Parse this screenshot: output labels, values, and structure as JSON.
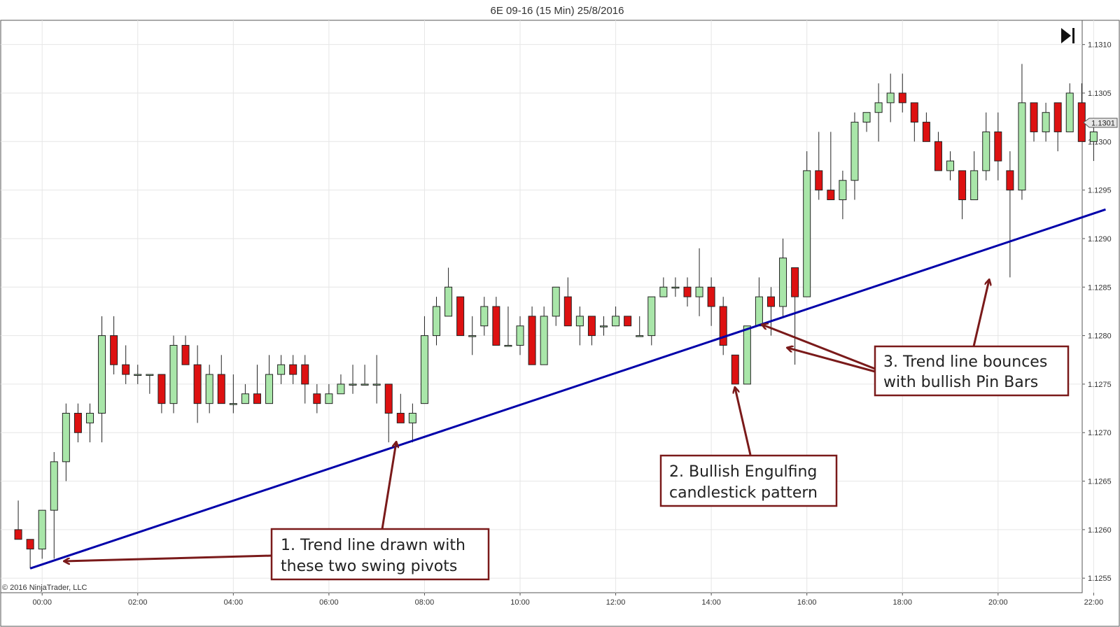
{
  "chart_data": {
    "type": "candlestick",
    "title": "6E 09-16 (15 Min)  25/8/2016",
    "copyright": "© 2016 NinjaTrader, LLC",
    "y_ticks": [
      "1.1310",
      "1.1305",
      "1.1300",
      "1.1295",
      "1.1290",
      "1.1285",
      "1.1280",
      "1.1275",
      "1.1270",
      "1.1265",
      "1.1260",
      "1.1255"
    ],
    "x_ticks": [
      "00:00",
      "02:00",
      "04:00",
      "06:00",
      "08:00",
      "10:00",
      "12:00",
      "14:00",
      "16:00",
      "18:00",
      "20:00",
      "22:00"
    ],
    "x_start": "23:15",
    "interval_minutes": 15,
    "ylim": [
      1.12535,
      1.13125
    ],
    "last_price": "1.1301",
    "colors": {
      "up": "#a9e6a9",
      "down": "#dd1111",
      "wick": "#222222",
      "trend": "#0000aa",
      "note": "#7a1a1a",
      "grid": "#e6e6e6"
    },
    "candles": [
      {
        "t": "23:30",
        "o": 1.126,
        "h": 1.1263,
        "l": 1.1259,
        "c": 1.1259
      },
      {
        "t": "23:45",
        "o": 1.1259,
        "h": 1.1259,
        "l": 1.1256,
        "c": 1.1258
      },
      {
        "t": "00:00",
        "o": 1.1258,
        "h": 1.1262,
        "l": 1.1257,
        "c": 1.1262
      },
      {
        "t": "00:15",
        "o": 1.1262,
        "h": 1.1268,
        "l": 1.1257,
        "c": 1.1267
      },
      {
        "t": "00:30",
        "o": 1.1267,
        "h": 1.1273,
        "l": 1.1265,
        "c": 1.1272
      },
      {
        "t": "00:45",
        "o": 1.1272,
        "h": 1.1273,
        "l": 1.1269,
        "c": 1.127
      },
      {
        "t": "01:00",
        "o": 1.1271,
        "h": 1.1273,
        "l": 1.1269,
        "c": 1.1272
      },
      {
        "t": "01:15",
        "o": 1.1272,
        "h": 1.1282,
        "l": 1.1269,
        "c": 1.128
      },
      {
        "t": "01:30",
        "o": 1.128,
        "h": 1.1282,
        "l": 1.1276,
        "c": 1.1277
      },
      {
        "t": "01:45",
        "o": 1.1277,
        "h": 1.1279,
        "l": 1.1275,
        "c": 1.1276
      },
      {
        "t": "02:00",
        "o": 1.1276,
        "h": 1.1277,
        "l": 1.1275,
        "c": 1.1276
      },
      {
        "t": "02:15",
        "o": 1.1276,
        "h": 1.1276,
        "l": 1.1274,
        "c": 1.1276
      },
      {
        "t": "02:30",
        "o": 1.1276,
        "h": 1.1276,
        "l": 1.1272,
        "c": 1.1273
      },
      {
        "t": "02:45",
        "o": 1.1273,
        "h": 1.128,
        "l": 1.1272,
        "c": 1.1279
      },
      {
        "t": "03:00",
        "o": 1.1279,
        "h": 1.128,
        "l": 1.1277,
        "c": 1.1277
      },
      {
        "t": "03:15",
        "o": 1.1277,
        "h": 1.1279,
        "l": 1.1271,
        "c": 1.1273
      },
      {
        "t": "03:30",
        "o": 1.1273,
        "h": 1.1277,
        "l": 1.1272,
        "c": 1.1276
      },
      {
        "t": "03:45",
        "o": 1.1276,
        "h": 1.1278,
        "l": 1.1273,
        "c": 1.1273
      },
      {
        "t": "04:00",
        "o": 1.1273,
        "h": 1.1276,
        "l": 1.1272,
        "c": 1.1273
      },
      {
        "t": "04:15",
        "o": 1.1273,
        "h": 1.1275,
        "l": 1.1273,
        "c": 1.1274
      },
      {
        "t": "04:30",
        "o": 1.1274,
        "h": 1.1277,
        "l": 1.1273,
        "c": 1.1273
      },
      {
        "t": "04:45",
        "o": 1.1273,
        "h": 1.1278,
        "l": 1.1273,
        "c": 1.1276
      },
      {
        "t": "05:00",
        "o": 1.1276,
        "h": 1.1278,
        "l": 1.1275,
        "c": 1.1277
      },
      {
        "t": "05:15",
        "o": 1.1277,
        "h": 1.1278,
        "l": 1.1275,
        "c": 1.1276
      },
      {
        "t": "05:30",
        "o": 1.1277,
        "h": 1.1278,
        "l": 1.1273,
        "c": 1.1275
      },
      {
        "t": "05:45",
        "o": 1.1274,
        "h": 1.1275,
        "l": 1.1272,
        "c": 1.1273
      },
      {
        "t": "06:00",
        "o": 1.1273,
        "h": 1.1275,
        "l": 1.1273,
        "c": 1.1274
      },
      {
        "t": "06:15",
        "o": 1.1274,
        "h": 1.1276,
        "l": 1.1274,
        "c": 1.1275
      },
      {
        "t": "06:30",
        "o": 1.1275,
        "h": 1.1277,
        "l": 1.1274,
        "c": 1.1275
      },
      {
        "t": "06:45",
        "o": 1.1275,
        "h": 1.1277,
        "l": 1.1275,
        "c": 1.1275
      },
      {
        "t": "07:00",
        "o": 1.1275,
        "h": 1.1278,
        "l": 1.1273,
        "c": 1.1275
      },
      {
        "t": "07:15",
        "o": 1.1275,
        "h": 1.1275,
        "l": 1.1269,
        "c": 1.1272
      },
      {
        "t": "07:30",
        "o": 1.1272,
        "h": 1.1274,
        "l": 1.1271,
        "c": 1.1271
      },
      {
        "t": "07:45",
        "o": 1.1271,
        "h": 1.1273,
        "l": 1.1269,
        "c": 1.1272
      },
      {
        "t": "08:00",
        "o": 1.1273,
        "h": 1.1282,
        "l": 1.1273,
        "c": 1.128
      },
      {
        "t": "08:15",
        "o": 1.128,
        "h": 1.1284,
        "l": 1.1279,
        "c": 1.1283
      },
      {
        "t": "08:30",
        "o": 1.1282,
        "h": 1.1287,
        "l": 1.1282,
        "c": 1.1285
      },
      {
        "t": "08:45",
        "o": 1.1284,
        "h": 1.1284,
        "l": 1.128,
        "c": 1.128
      },
      {
        "t": "09:00",
        "o": 1.128,
        "h": 1.1282,
        "l": 1.1278,
        "c": 1.128
      },
      {
        "t": "09:15",
        "o": 1.1281,
        "h": 1.1284,
        "l": 1.128,
        "c": 1.1283
      },
      {
        "t": "09:30",
        "o": 1.1283,
        "h": 1.1284,
        "l": 1.1279,
        "c": 1.1279
      },
      {
        "t": "09:45",
        "o": 1.1279,
        "h": 1.1283,
        "l": 1.1279,
        "c": 1.1279
      },
      {
        "t": "10:00",
        "o": 1.1279,
        "h": 1.1282,
        "l": 1.1278,
        "c": 1.1281
      },
      {
        "t": "10:15",
        "o": 1.1282,
        "h": 1.1283,
        "l": 1.1277,
        "c": 1.1277
      },
      {
        "t": "10:30",
        "o": 1.1277,
        "h": 1.1283,
        "l": 1.1277,
        "c": 1.1282
      },
      {
        "t": "10:45",
        "o": 1.1282,
        "h": 1.1285,
        "l": 1.1281,
        "c": 1.1285
      },
      {
        "t": "11:00",
        "o": 1.1284,
        "h": 1.1286,
        "l": 1.1281,
        "c": 1.1281
      },
      {
        "t": "11:15",
        "o": 1.1281,
        "h": 1.1283,
        "l": 1.1279,
        "c": 1.1282
      },
      {
        "t": "11:30",
        "o": 1.1282,
        "h": 1.1282,
        "l": 1.1279,
        "c": 1.128
      },
      {
        "t": "11:45",
        "o": 1.1281,
        "h": 1.1282,
        "l": 1.128,
        "c": 1.1281
      },
      {
        "t": "12:00",
        "o": 1.1281,
        "h": 1.1283,
        "l": 1.1281,
        "c": 1.1282
      },
      {
        "t": "12:15",
        "o": 1.1282,
        "h": 1.1282,
        "l": 1.1281,
        "c": 1.1281
      },
      {
        "t": "12:30",
        "o": 1.128,
        "h": 1.1282,
        "l": 1.128,
        "c": 1.128
      },
      {
        "t": "12:45",
        "o": 1.128,
        "h": 1.1284,
        "l": 1.1279,
        "c": 1.1284
      },
      {
        "t": "13:00",
        "o": 1.1284,
        "h": 1.1286,
        "l": 1.1284,
        "c": 1.1285
      },
      {
        "t": "13:15",
        "o": 1.1285,
        "h": 1.1286,
        "l": 1.1284,
        "c": 1.1285
      },
      {
        "t": "13:30",
        "o": 1.1285,
        "h": 1.1286,
        "l": 1.1283,
        "c": 1.1284
      },
      {
        "t": "13:45",
        "o": 1.1284,
        "h": 1.1289,
        "l": 1.1282,
        "c": 1.1285
      },
      {
        "t": "14:00",
        "o": 1.1285,
        "h": 1.1286,
        "l": 1.1281,
        "c": 1.1283
      },
      {
        "t": "14:15",
        "o": 1.1283,
        "h": 1.1284,
        "l": 1.1278,
        "c": 1.1279
      },
      {
        "t": "14:30",
        "o": 1.1278,
        "h": 1.1278,
        "l": 1.1275,
        "c": 1.1275
      },
      {
        "t": "14:45",
        "o": 1.1275,
        "h": 1.1281,
        "l": 1.1275,
        "c": 1.1281
      },
      {
        "t": "15:00",
        "o": 1.1281,
        "h": 1.1286,
        "l": 1.1281,
        "c": 1.1284
      },
      {
        "t": "15:15",
        "o": 1.1284,
        "h": 1.1285,
        "l": 1.128,
        "c": 1.1283
      },
      {
        "t": "15:30",
        "o": 1.1283,
        "h": 1.129,
        "l": 1.1282,
        "c": 1.1288
      },
      {
        "t": "15:45",
        "o": 1.1287,
        "h": 1.1287,
        "l": 1.1277,
        "c": 1.1284
      },
      {
        "t": "16:00",
        "o": 1.1284,
        "h": 1.1299,
        "l": 1.1284,
        "c": 1.1297
      },
      {
        "t": "16:15",
        "o": 1.1297,
        "h": 1.1301,
        "l": 1.1294,
        "c": 1.1295
      },
      {
        "t": "16:30",
        "o": 1.1295,
        "h": 1.1301,
        "l": 1.1294,
        "c": 1.1294
      },
      {
        "t": "16:45",
        "o": 1.1294,
        "h": 1.1297,
        "l": 1.1292,
        "c": 1.1296
      },
      {
        "t": "17:00",
        "o": 1.1296,
        "h": 1.1303,
        "l": 1.1294,
        "c": 1.1302
      },
      {
        "t": "17:15",
        "o": 1.1302,
        "h": 1.1303,
        "l": 1.1301,
        "c": 1.1303
      },
      {
        "t": "17:30",
        "o": 1.1303,
        "h": 1.1306,
        "l": 1.13,
        "c": 1.1304
      },
      {
        "t": "17:45",
        "o": 1.1304,
        "h": 1.1307,
        "l": 1.1302,
        "c": 1.1305
      },
      {
        "t": "18:00",
        "o": 1.1305,
        "h": 1.1307,
        "l": 1.1303,
        "c": 1.1304
      },
      {
        "t": "18:15",
        "o": 1.1304,
        "h": 1.1304,
        "l": 1.13,
        "c": 1.1302
      },
      {
        "t": "18:30",
        "o": 1.1302,
        "h": 1.1303,
        "l": 1.13,
        "c": 1.13
      },
      {
        "t": "18:45",
        "o": 1.13,
        "h": 1.1301,
        "l": 1.1297,
        "c": 1.1297
      },
      {
        "t": "19:00",
        "o": 1.1297,
        "h": 1.1299,
        "l": 1.1296,
        "c": 1.1298
      },
      {
        "t": "19:15",
        "o": 1.1297,
        "h": 1.1297,
        "l": 1.1292,
        "c": 1.1294
      },
      {
        "t": "19:30",
        "o": 1.1294,
        "h": 1.1299,
        "l": 1.1294,
        "c": 1.1297
      },
      {
        "t": "19:45",
        "o": 1.1297,
        "h": 1.1303,
        "l": 1.1296,
        "c": 1.1301
      },
      {
        "t": "20:00",
        "o": 1.1301,
        "h": 1.1303,
        "l": 1.1296,
        "c": 1.1298
      },
      {
        "t": "20:15",
        "o": 1.1297,
        "h": 1.1299,
        "l": 1.1286,
        "c": 1.1295
      },
      {
        "t": "20:30",
        "o": 1.1295,
        "h": 1.1308,
        "l": 1.1294,
        "c": 1.1304
      },
      {
        "t": "20:45",
        "o": 1.1304,
        "h": 1.1304,
        "l": 1.13,
        "c": 1.1301
      },
      {
        "t": "21:00",
        "o": 1.1301,
        "h": 1.1304,
        "l": 1.13,
        "c": 1.1303
      },
      {
        "t": "21:15",
        "o": 1.1304,
        "h": 1.1304,
        "l": 1.1299,
        "c": 1.1301
      },
      {
        "t": "21:30",
        "o": 1.1301,
        "h": 1.1306,
        "l": 1.1301,
        "c": 1.1305
      },
      {
        "t": "21:45",
        "o": 1.1304,
        "h": 1.1306,
        "l": 1.13,
        "c": 1.13
      },
      {
        "t": "22:00",
        "o": 1.13,
        "h": 1.1302,
        "l": 1.1298,
        "c": 1.1301
      }
    ],
    "trend_line": [
      {
        "t": "23:45",
        "y": 1.1256
      },
      {
        "t": "22:15",
        "y": 1.1293
      }
    ],
    "annotations": [
      {
        "lines": [
          "1. Trend line drawn with",
          "these two swing pivots"
        ]
      },
      {
        "lines": [
          "2. Bullish Engulfing",
          "candlestick pattern"
        ]
      },
      {
        "lines": [
          "3. Trend line bounces",
          "with bullish Pin Bars"
        ]
      }
    ]
  }
}
